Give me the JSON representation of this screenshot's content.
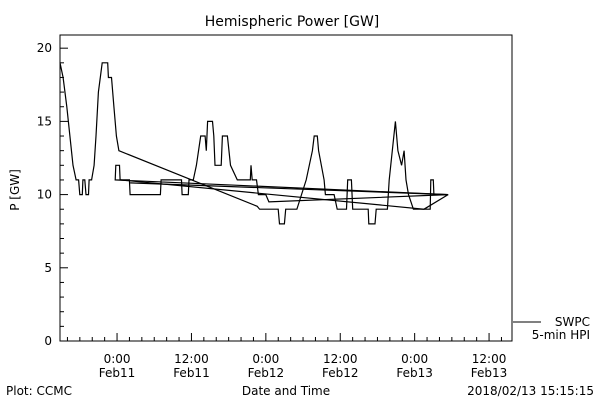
{
  "chart_data": {
    "type": "line",
    "title": "Hemispheric Power [GW]",
    "xlabel": "Date and Time",
    "ylabel": "P [GW]",
    "x_units": "hours since 2018-02-11 00:00",
    "xlim": [
      -9.2,
      63.7
    ],
    "ylim": [
      0,
      20.9
    ],
    "y_major_ticks": [
      0,
      5,
      10,
      15,
      20
    ],
    "y_minor_step": 1,
    "x_minor_step": 2,
    "x_ticks": [
      {
        "value": 0,
        "line1": "0:00",
        "line2": "Feb11"
      },
      {
        "value": 12,
        "line1": "12:00",
        "line2": "Feb11"
      },
      {
        "value": 24,
        "line1": "0:00",
        "line2": "Feb12"
      },
      {
        "value": 36,
        "line1": "12:00",
        "line2": "Feb12"
      },
      {
        "value": 48,
        "line1": "0:00",
        "line2": "Feb13"
      },
      {
        "value": 60,
        "line1": "12:00",
        "line2": "Feb13"
      }
    ],
    "legend": {
      "placement": "right-bottom-outside",
      "entries": [
        "SWPC",
        "5-min HPI"
      ]
    },
    "grid": false,
    "series": [
      {
        "name": "SWPC",
        "segments": [
          [
            [
              -9.2,
              19
            ],
            [
              -8.7,
              18
            ],
            [
              -8.1,
              16
            ],
            [
              -7.6,
              14
            ],
            [
              -7.1,
              12
            ],
            [
              -6.6,
              11
            ],
            [
              -6.2,
              11
            ],
            [
              -6.0,
              10
            ],
            [
              -5.6,
              10
            ],
            [
              -5.5,
              11
            ],
            [
              -5.2,
              11
            ],
            [
              -5.0,
              10
            ],
            [
              -4.6,
              10
            ],
            [
              -4.5,
              11
            ],
            [
              -4.1,
              11
            ],
            [
              -3.7,
              12
            ],
            [
              -3.4,
              14
            ],
            [
              -3.0,
              17
            ],
            [
              -2.7,
              18
            ],
            [
              -2.4,
              19
            ],
            [
              -1.5,
              19
            ],
            [
              -1.4,
              18
            ],
            [
              -0.9,
              18
            ],
            [
              -0.5,
              16
            ],
            [
              -0.1,
              14
            ],
            [
              0.3,
              13
            ],
            [
              22.6,
              9.2
            ],
            [
              23,
              9
            ],
            [
              26,
              9
            ],
            [
              26.2,
              8
            ],
            [
              27,
              8
            ],
            [
              27.2,
              9
            ],
            [
              29,
              9
            ],
            [
              30.5,
              11
            ],
            [
              31.5,
              13
            ],
            [
              31.8,
              14
            ],
            [
              32.3,
              14
            ],
            [
              32.5,
              13
            ],
            [
              33.4,
              11
            ],
            [
              33.6,
              10
            ],
            [
              35,
              10
            ],
            [
              35.5,
              9
            ],
            [
              37,
              9
            ],
            [
              37.2,
              11
            ],
            [
              37.8,
              11
            ],
            [
              38,
              9
            ],
            [
              40.5,
              9
            ],
            [
              40.6,
              8
            ],
            [
              41.6,
              8
            ],
            [
              41.8,
              9
            ],
            [
              43.6,
              9
            ],
            [
              43.9,
              11
            ],
            [
              44.4,
              13
            ],
            [
              44.9,
              15
            ],
            [
              45.3,
              13
            ],
            [
              45.9,
              12
            ],
            [
              46.3,
              13
            ],
            [
              46.6,
              11
            ],
            [
              47,
              10
            ],
            [
              47.8,
              9
            ],
            [
              50.5,
              9
            ],
            [
              50.6,
              11
            ],
            [
              51,
              11
            ],
            [
              51.1,
              10
            ],
            [
              53.4,
              10
            ]
          ],
          [
            [
              53.4,
              10
            ],
            [
              -0.3,
              11
            ],
            [
              -0.2,
              12
            ],
            [
              0.4,
              12
            ],
            [
              0.5,
              11
            ],
            [
              2.0,
              11
            ],
            [
              2.1,
              10
            ],
            [
              7.0,
              10
            ],
            [
              7.1,
              11
            ],
            [
              10.4,
              11
            ],
            [
              10.5,
              10
            ],
            [
              11.5,
              10
            ],
            [
              11.6,
              11
            ],
            [
              12.3,
              11
            ],
            [
              12.8,
              12
            ],
            [
              13.5,
              14
            ],
            [
              14.2,
              14
            ],
            [
              14.4,
              13
            ],
            [
              14.6,
              15
            ],
            [
              15.4,
              15
            ],
            [
              15.6,
              14
            ],
            [
              15.8,
              12
            ],
            [
              16.8,
              12
            ],
            [
              17.0,
              14
            ],
            [
              17.8,
              14
            ],
            [
              18.3,
              12
            ],
            [
              19.4,
              11
            ],
            [
              21.5,
              11
            ],
            [
              21.6,
              12
            ],
            [
              21.8,
              11
            ],
            [
              22.5,
              11
            ],
            [
              22.8,
              10
            ],
            [
              24,
              10
            ],
            [
              24.5,
              9.5
            ],
            [
              53.4,
              10
            ]
          ],
          [
            [
              0.5,
              11
            ],
            [
              49.5,
              9
            ],
            [
              53.4,
              10
            ]
          ],
          [
            [
              2.1,
              10.8
            ],
            [
              53.4,
              10
            ]
          ]
        ]
      }
    ]
  },
  "footer": {
    "left": "Plot: CCMC",
    "right": "2018/02/13 15:15:15"
  }
}
